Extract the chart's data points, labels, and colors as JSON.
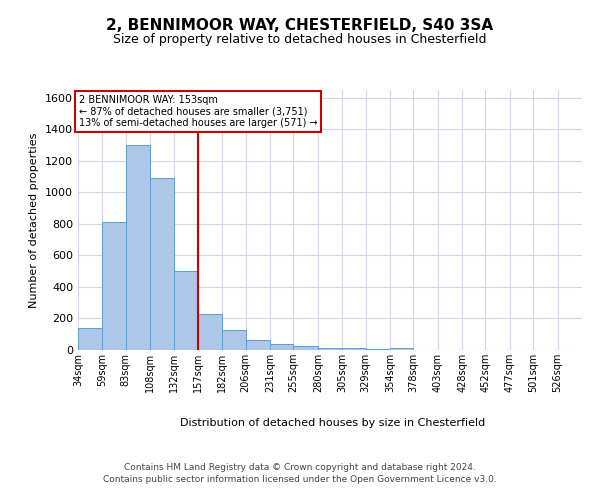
{
  "title1": "2, BENNIMOOR WAY, CHESTERFIELD, S40 3SA",
  "title2": "Size of property relative to detached houses in Chesterfield",
  "xlabel": "Distribution of detached houses by size in Chesterfield",
  "ylabel": "Number of detached properties",
  "footer1": "Contains HM Land Registry data © Crown copyright and database right 2024.",
  "footer2": "Contains public sector information licensed under the Open Government Licence v3.0.",
  "annotation_line1": "2 BENNIMOOR WAY: 153sqm",
  "annotation_line2": "← 87% of detached houses are smaller (3,751)",
  "annotation_line3": "13% of semi-detached houses are larger (571) →",
  "bar_color": "#aec6e8",
  "bar_edge_color": "#5a9fd4",
  "vline_color": "#cc0000",
  "annotation_box_color": "#cc0000",
  "background_color": "#ffffff",
  "grid_color": "#d0d8e8",
  "categories": [
    "34sqm",
    "59sqm",
    "83sqm",
    "108sqm",
    "132sqm",
    "157sqm",
    "182sqm",
    "206sqm",
    "231sqm",
    "255sqm",
    "280sqm",
    "305sqm",
    "329sqm",
    "354sqm",
    "378sqm",
    "403sqm",
    "428sqm",
    "452sqm",
    "477sqm",
    "501sqm",
    "526sqm"
  ],
  "bin_edges": [
    34,
    59,
    83,
    108,
    132,
    157,
    182,
    206,
    231,
    255,
    280,
    305,
    329,
    354,
    378,
    403,
    428,
    452,
    477,
    501,
    526,
    551
  ],
  "values": [
    140,
    810,
    1300,
    1090,
    500,
    230,
    130,
    65,
    38,
    25,
    15,
    10,
    5,
    10,
    0,
    0,
    0,
    0,
    0,
    0,
    0
  ],
  "ylim": [
    0,
    1650
  ],
  "yticks": [
    0,
    200,
    400,
    600,
    800,
    1000,
    1200,
    1400,
    1600
  ],
  "vline_x": 157
}
